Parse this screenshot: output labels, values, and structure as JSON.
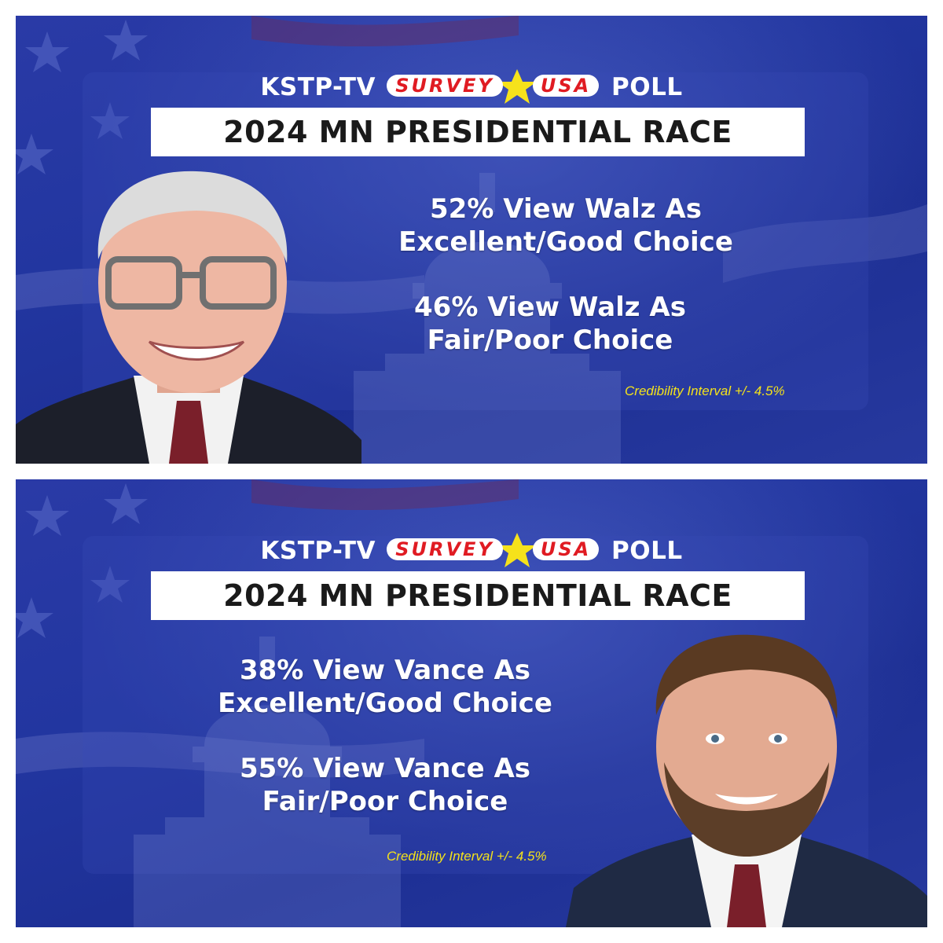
{
  "panels": [
    {
      "header": {
        "left_text": "KSTP-TV",
        "logo_word_1": "SURVEY",
        "logo_word_2": "USA",
        "right_text": "POLL"
      },
      "title": "2024 MN PRESIDENTIAL RACE",
      "stats": [
        {
          "line1": "52% View Walz As",
          "line2": "Excellent/Good Choice"
        },
        {
          "line1": "46% View Walz As",
          "line2": "Fair/Poor Choice"
        }
      ],
      "credibility": "Credibility Interval +/- 4.5%",
      "portrait_icon": "person-portrait-walz"
    },
    {
      "header": {
        "left_text": "KSTP-TV",
        "logo_word_1": "SURVEY",
        "logo_word_2": "USA",
        "right_text": "POLL"
      },
      "title": "2024 MN PRESIDENTIAL RACE",
      "stats": [
        {
          "line1": "38% View Vance As",
          "line2": "Excellent/Good Choice"
        },
        {
          "line1": "55% View Vance As",
          "line2": "Fair/Poor Choice"
        }
      ],
      "credibility": "Credibility Interval +/- 4.5%",
      "portrait_icon": "person-portrait-vance"
    }
  ],
  "colors": {
    "background_blue": "#2236a0",
    "title_box": "#ffffff",
    "credibility_text": "#f4e21a",
    "logo_red": "#e01b22",
    "logo_star": "#f6e21b"
  }
}
